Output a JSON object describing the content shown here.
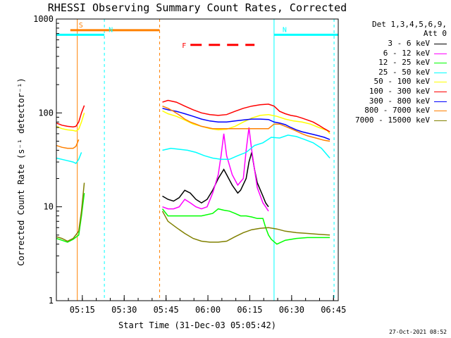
{
  "chart_data": {
    "type": "line",
    "title": "RHESSI Observing Summary Count Rates, Corrected",
    "xlabel": "Start Time (31-Dec-03 05:05:42)",
    "ylabel": "Corrected Count Rate (s⁻¹ detector⁻¹)",
    "yscale": "log",
    "ylim": [
      1,
      1000
    ],
    "xlim_minutes": [
      0,
      101
    ],
    "xticks": [
      {
        "label": "05:15",
        "minutes": 9.3
      },
      {
        "label": "05:30",
        "minutes": 24.3
      },
      {
        "label": "05:45",
        "minutes": 39.3
      },
      {
        "label": "06:00",
        "minutes": 54.3
      },
      {
        "label": "06:15",
        "minutes": 69.3
      },
      {
        "label": "06:30",
        "minutes": 84.3
      },
      {
        "label": "06:45",
        "minutes": 99.3
      }
    ],
    "yticks": [
      "1",
      "10",
      "100",
      "1000"
    ],
    "legend_header": [
      "Det 1,3,4,5,6,9,",
      "Att 0"
    ],
    "legend_placement": "right",
    "series": [
      {
        "name": "3 - 6 keV",
        "color": "#000000",
        "points": [
          [
            38,
            13
          ],
          [
            40,
            12
          ],
          [
            42,
            11.5
          ],
          [
            44,
            12.5
          ],
          [
            46,
            15
          ],
          [
            48,
            14
          ],
          [
            50,
            12
          ],
          [
            52,
            11
          ],
          [
            54,
            12
          ],
          [
            56,
            15
          ],
          [
            58,
            20
          ],
          [
            60,
            25
          ],
          [
            61,
            22
          ],
          [
            63,
            17
          ],
          [
            65,
            14
          ],
          [
            66,
            15
          ],
          [
            68,
            20
          ],
          [
            69,
            30
          ],
          [
            70,
            38
          ],
          [
            71,
            25
          ],
          [
            72,
            18
          ],
          [
            74,
            13
          ],
          [
            75,
            11
          ],
          [
            76,
            10
          ]
        ]
      },
      {
        "name": "6 - 12 keV",
        "color": "#ff00ff",
        "points": [
          [
            38,
            10
          ],
          [
            40,
            9.5
          ],
          [
            42,
            9.5
          ],
          [
            44,
            10
          ],
          [
            46,
            12
          ],
          [
            48,
            11
          ],
          [
            50,
            10
          ],
          [
            52,
            9.5
          ],
          [
            54,
            10
          ],
          [
            56,
            14
          ],
          [
            58,
            22
          ],
          [
            59,
            35
          ],
          [
            60,
            60
          ],
          [
            61,
            35
          ],
          [
            63,
            22
          ],
          [
            65,
            17
          ],
          [
            67,
            20
          ],
          [
            68,
            40
          ],
          [
            69,
            70
          ],
          [
            70,
            40
          ],
          [
            71,
            25
          ],
          [
            72,
            16
          ],
          [
            74,
            11
          ],
          [
            75,
            10
          ],
          [
            76,
            9
          ]
        ]
      },
      {
        "name": "12 - 25 keV",
        "color": "#00ff00",
        "points": [
          [
            0,
            4.6
          ],
          [
            2,
            4.4
          ],
          [
            4,
            4.2
          ],
          [
            6,
            4.5
          ],
          [
            8,
            5
          ],
          [
            9,
            8
          ],
          [
            10,
            14
          ],
          [
            38,
            9.5
          ],
          [
            40,
            8
          ],
          [
            44,
            8
          ],
          [
            48,
            8
          ],
          [
            52,
            8
          ],
          [
            56,
            8.5
          ],
          [
            58,
            9.5
          ],
          [
            60,
            9.2
          ],
          [
            62,
            9
          ],
          [
            64,
            8.5
          ],
          [
            66,
            8
          ],
          [
            68,
            8
          ],
          [
            70,
            7.8
          ],
          [
            72,
            7.5
          ],
          [
            74,
            7.5
          ],
          [
            75,
            6
          ],
          [
            76,
            5
          ],
          [
            77,
            4.5
          ],
          [
            79,
            4
          ],
          [
            82,
            4.4
          ],
          [
            86,
            4.6
          ],
          [
            90,
            4.7
          ],
          [
            94,
            4.7
          ],
          [
            98,
            4.7
          ]
        ]
      },
      {
        "name": "25 - 50 keV",
        "color": "#00ffff",
        "points": [
          [
            0,
            33
          ],
          [
            2,
            32
          ],
          [
            4,
            31
          ],
          [
            6,
            30
          ],
          [
            7,
            29
          ],
          [
            8,
            32
          ],
          [
            9,
            38
          ],
          [
            38,
            40
          ],
          [
            41,
            42
          ],
          [
            44,
            41
          ],
          [
            47,
            40
          ],
          [
            50,
            38
          ],
          [
            53,
            35
          ],
          [
            56,
            33
          ],
          [
            59,
            32
          ],
          [
            62,
            32
          ],
          [
            65,
            35
          ],
          [
            68,
            38
          ],
          [
            71,
            45
          ],
          [
            74,
            48
          ],
          [
            77,
            55
          ],
          [
            80,
            54
          ],
          [
            83,
            58
          ],
          [
            86,
            56
          ],
          [
            89,
            52
          ],
          [
            92,
            48
          ],
          [
            95,
            42
          ],
          [
            98,
            33
          ]
        ]
      },
      {
        "name": "50 - 100 keV",
        "color": "#ffff00",
        "points": [
          [
            0,
            72
          ],
          [
            2,
            68
          ],
          [
            4,
            66
          ],
          [
            6,
            65
          ],
          [
            7,
            64
          ],
          [
            8,
            67
          ],
          [
            9,
            80
          ],
          [
            10,
            100
          ],
          [
            38,
            105
          ],
          [
            40,
            98
          ],
          [
            43,
            92
          ],
          [
            46,
            84
          ],
          [
            49,
            76
          ],
          [
            52,
            72
          ],
          [
            55,
            68
          ],
          [
            58,
            66
          ],
          [
            61,
            67
          ],
          [
            64,
            72
          ],
          [
            67,
            80
          ],
          [
            70,
            88
          ],
          [
            73,
            94
          ],
          [
            76,
            96
          ],
          [
            79,
            92
          ],
          [
            82,
            86
          ],
          [
            85,
            82
          ],
          [
            88,
            80
          ],
          [
            91,
            76
          ],
          [
            94,
            70
          ],
          [
            97,
            65
          ],
          [
            98,
            60
          ]
        ]
      },
      {
        "name": "100 - 300 keV",
        "color": "#ff0000",
        "points": [
          [
            0,
            78
          ],
          [
            2,
            74
          ],
          [
            4,
            72
          ],
          [
            6,
            71
          ],
          [
            7,
            72
          ],
          [
            8,
            80
          ],
          [
            9,
            100
          ],
          [
            10,
            120
          ],
          [
            38,
            130
          ],
          [
            40,
            136
          ],
          [
            43,
            130
          ],
          [
            46,
            118
          ],
          [
            49,
            108
          ],
          [
            52,
            100
          ],
          [
            55,
            96
          ],
          [
            58,
            94
          ],
          [
            61,
            96
          ],
          [
            64,
            104
          ],
          [
            67,
            112
          ],
          [
            70,
            118
          ],
          [
            73,
            122
          ],
          [
            76,
            124
          ],
          [
            78,
            118
          ],
          [
            80,
            104
          ],
          [
            82,
            98
          ],
          [
            84,
            94
          ],
          [
            86,
            92
          ],
          [
            88,
            88
          ],
          [
            90,
            84
          ],
          [
            92,
            80
          ],
          [
            94,
            74
          ],
          [
            96,
            68
          ],
          [
            98,
            63
          ]
        ]
      },
      {
        "name": "300 - 800 keV",
        "color": "#0000ff",
        "points": [
          [
            38,
            112
          ],
          [
            40,
            108
          ],
          [
            43,
            104
          ],
          [
            46,
            98
          ],
          [
            49,
            92
          ],
          [
            52,
            86
          ],
          [
            55,
            82
          ],
          [
            58,
            80
          ],
          [
            61,
            80
          ],
          [
            64,
            82
          ],
          [
            67,
            84
          ],
          [
            70,
            86
          ],
          [
            73,
            86
          ],
          [
            76,
            85
          ],
          [
            78,
            80
          ],
          [
            80,
            78
          ],
          [
            82,
            75
          ],
          [
            84,
            70
          ],
          [
            86,
            66
          ],
          [
            88,
            63
          ],
          [
            90,
            61
          ],
          [
            92,
            59
          ],
          [
            94,
            57
          ],
          [
            96,
            55
          ],
          [
            98,
            52
          ]
        ]
      },
      {
        "name": "800 - 7000 keV",
        "color": "#ff8000",
        "points": [
          [
            0,
            45
          ],
          [
            2,
            43
          ],
          [
            4,
            42
          ],
          [
            6,
            42
          ],
          [
            7,
            44
          ],
          [
            8,
            52
          ],
          [
            38,
            118
          ],
          [
            40,
            112
          ],
          [
            42,
            104
          ],
          [
            44,
            95
          ],
          [
            46,
            86
          ],
          [
            48,
            80
          ],
          [
            50,
            76
          ],
          [
            52,
            72
          ],
          [
            54,
            70
          ],
          [
            56,
            68
          ],
          [
            58,
            68
          ],
          [
            60,
            68
          ],
          [
            64,
            68
          ],
          [
            68,
            68
          ],
          [
            72,
            68
          ],
          [
            76,
            68
          ],
          [
            78,
            76
          ],
          [
            80,
            76
          ],
          [
            82,
            72
          ],
          [
            84,
            68
          ],
          [
            86,
            64
          ],
          [
            88,
            60
          ],
          [
            90,
            57
          ],
          [
            92,
            55
          ],
          [
            94,
            53
          ],
          [
            96,
            51
          ],
          [
            98,
            50
          ]
        ]
      },
      {
        "name": "7000 - 15000 keV",
        "color": "#808000",
        "points": [
          [
            0,
            4.8
          ],
          [
            2,
            4.6
          ],
          [
            4,
            4.3
          ],
          [
            6,
            4.6
          ],
          [
            8,
            5.5
          ],
          [
            9,
            9
          ],
          [
            10,
            18
          ],
          [
            38,
            9
          ],
          [
            40,
            7
          ],
          [
            43,
            6
          ],
          [
            46,
            5.2
          ],
          [
            49,
            4.6
          ],
          [
            52,
            4.3
          ],
          [
            55,
            4.2
          ],
          [
            58,
            4.2
          ],
          [
            61,
            4.3
          ],
          [
            64,
            4.8
          ],
          [
            67,
            5.3
          ],
          [
            70,
            5.7
          ],
          [
            73,
            5.9
          ],
          [
            76,
            6
          ],
          [
            79,
            5.8
          ],
          [
            82,
            5.5
          ],
          [
            86,
            5.3
          ],
          [
            90,
            5.2
          ],
          [
            94,
            5.1
          ],
          [
            98,
            5
          ]
        ]
      }
    ],
    "flags": [
      {
        "label": "S",
        "color": "#ff8000",
        "x_start": 5.0,
        "x_end": 37.0,
        "value": 760
      },
      {
        "label": "N",
        "color": "#00ffff",
        "x_start": 0.0,
        "x_end": 17.2,
        "value": 680
      },
      {
        "label": "N",
        "color": "#00ffff",
        "x_start": 78.0,
        "x_end": 101.0,
        "value": 680
      },
      {
        "label": "F",
        "color": "#ff0000",
        "x_start": 45.0,
        "x_end": 71.0,
        "value": 530
      }
    ],
    "markers": [
      {
        "color": "#ff8000",
        "style": "solid",
        "minutes": 7.5
      },
      {
        "color": "#00ffff",
        "style": "dashed",
        "minutes": 17.2
      },
      {
        "color": "#ff8000",
        "style": "dashed",
        "minutes": 37.0
      },
      {
        "color": "#00ffff",
        "style": "solid",
        "minutes": 78.0
      },
      {
        "color": "#00ffff",
        "style": "dashed",
        "minutes": 99.5
      }
    ]
  },
  "timestamp": "27-Oct-2021 08:52"
}
